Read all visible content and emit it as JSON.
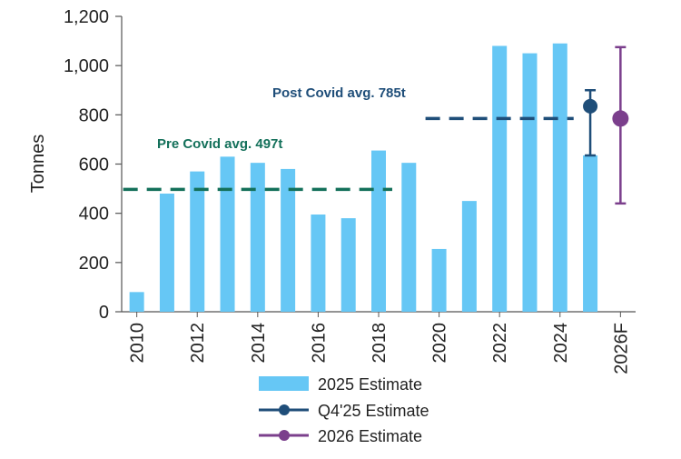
{
  "chart_data": {
    "type": "bar",
    "ylabel": "Tonnes",
    "xlabel": "",
    "ylim": [
      0,
      1200
    ],
    "yticks": [
      0,
      200,
      400,
      600,
      800,
      1000,
      1200
    ],
    "ytick_labels": [
      "0",
      "200",
      "400",
      "600",
      "800",
      "1,000",
      "1,200"
    ],
    "categories": [
      "2010",
      "2011",
      "2012",
      "2013",
      "2014",
      "2015",
      "2016",
      "2017",
      "2018",
      "2019",
      "2020",
      "2021",
      "2022",
      "2023",
      "2024",
      "2025",
      "2026F"
    ],
    "xtick_labels_shown": [
      "2010",
      "2012",
      "2014",
      "2016",
      "2018",
      "2020",
      "2022",
      "2024",
      "2026F"
    ],
    "series": [
      {
        "name": "2025 Estimate",
        "color": "#66c7f5",
        "values": [
          80,
          480,
          570,
          630,
          605,
          580,
          395,
          380,
          655,
          605,
          255,
          450,
          1080,
          1050,
          1090,
          635,
          null
        ]
      }
    ],
    "error_bars": [
      {
        "name": "Q4'25 Estimate",
        "category": "2025",
        "value": 835,
        "low": 635,
        "high": 900,
        "color": "#1f4e79"
      },
      {
        "name": "2026 Estimate",
        "category": "2026F",
        "value": 785,
        "low": 440,
        "high": 1075,
        "color": "#7b3f8c"
      }
    ],
    "reference_lines": [
      {
        "label": "Pre Covid avg. 497t",
        "value": 497,
        "from": "2010",
        "to": "2018",
        "color": "#13705a"
      },
      {
        "label": "Post Covid avg. 785t",
        "value": 785,
        "from": "2020",
        "to": "2024",
        "color": "#1f4e79"
      }
    ],
    "legend": {
      "position": "bottom",
      "items": [
        {
          "label": "2025 Estimate",
          "marker": "bar",
          "color": "#66c7f5"
        },
        {
          "label": "Q4'25 Estimate",
          "marker": "line-dot",
          "color": "#1f4e79"
        },
        {
          "label": "2026 Estimate",
          "marker": "line-dot",
          "color": "#7b3f8c"
        }
      ]
    },
    "grid": false
  }
}
